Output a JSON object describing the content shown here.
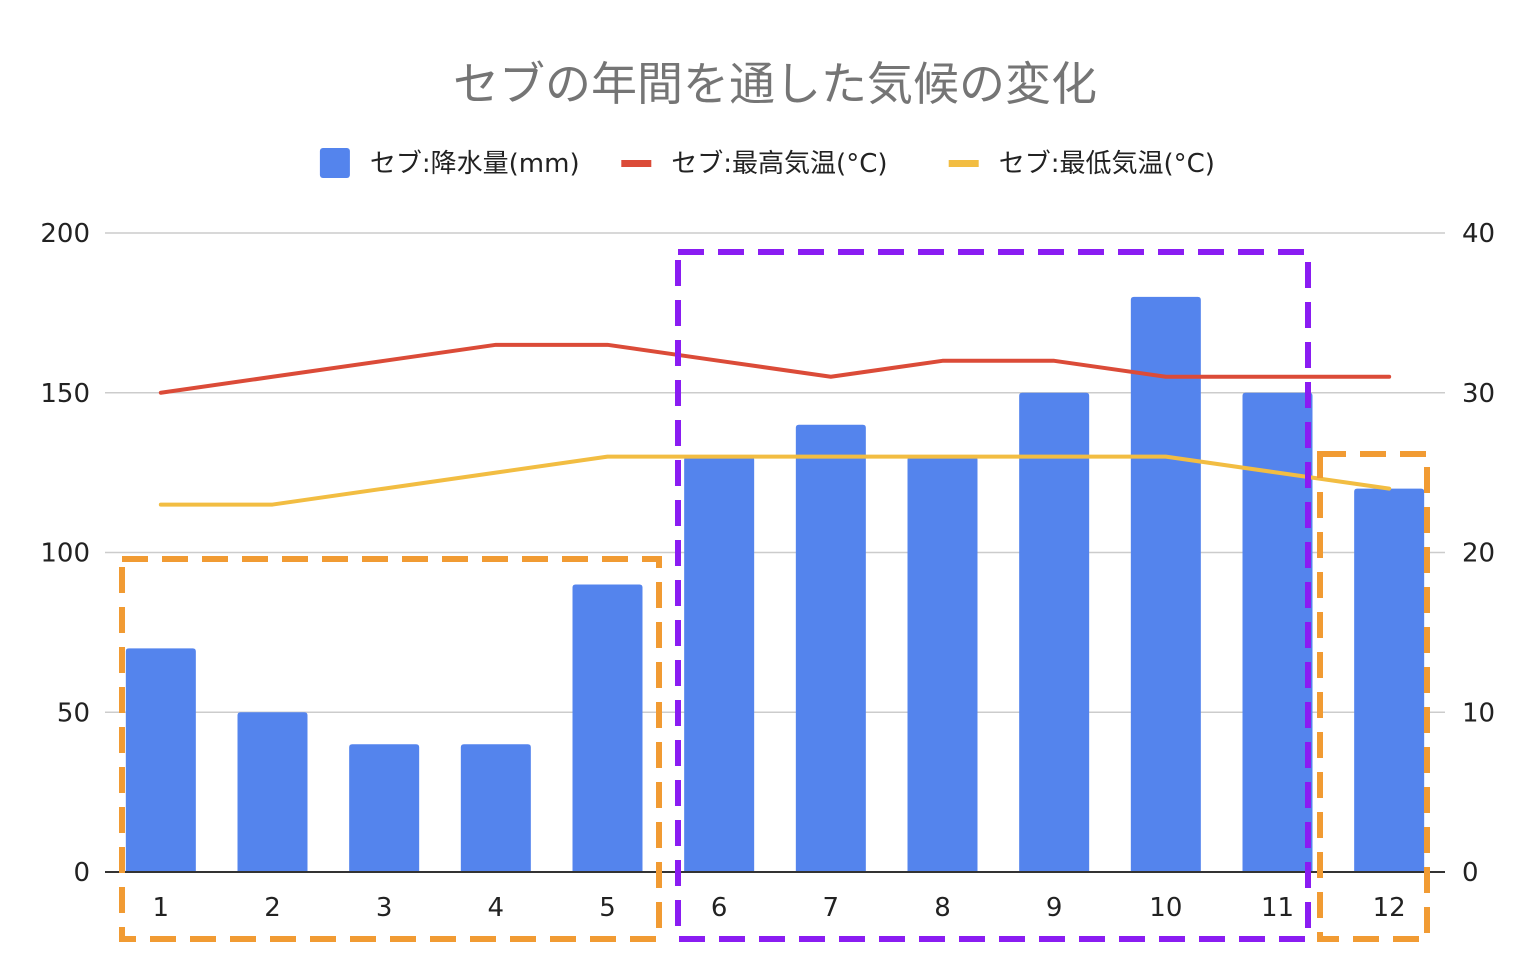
{
  "chart_data": {
    "type": "bar",
    "title": "セブの年間を通した気候の変化",
    "categories": [
      "1",
      "2",
      "3",
      "4",
      "5",
      "6",
      "7",
      "8",
      "9",
      "10",
      "11",
      "12"
    ],
    "series": [
      {
        "name": "セブ:降水量(mm)",
        "type": "bar",
        "axis": "left",
        "color": "#5484ED",
        "values": [
          70,
          50,
          40,
          40,
          90,
          130,
          140,
          130,
          150,
          180,
          150,
          120
        ]
      },
      {
        "name": "セブ:最高気温(°C)",
        "type": "line",
        "axis": "right",
        "color": "#DB4B38",
        "values": [
          30,
          31,
          32,
          33,
          33,
          32,
          31,
          32,
          32,
          31,
          31,
          31
        ]
      },
      {
        "name": "セブ:最低気温(°C)",
        "type": "line",
        "axis": "right",
        "color": "#F2BD42",
        "values": [
          23,
          23,
          24,
          25,
          26,
          26,
          26,
          26,
          26,
          26,
          25,
          24
        ]
      }
    ],
    "left_axis": {
      "ylim": [
        0,
        200
      ],
      "ticks": [
        "0",
        "50",
        "100",
        "150",
        "200"
      ]
    },
    "right_axis": {
      "ylim": [
        0,
        40
      ],
      "ticks": [
        "0",
        "10",
        "20",
        "30",
        "40"
      ]
    },
    "grid": true,
    "legend_placement": "top-center",
    "highlights": [
      {
        "from": 1,
        "to": 5,
        "color": "#F19B33",
        "style": "dashed"
      },
      {
        "from": 6,
        "to": 11,
        "color": "#8A1CF2",
        "style": "dashed"
      },
      {
        "from": 12,
        "to": 12,
        "color": "#F19B33",
        "style": "dashed"
      }
    ]
  }
}
